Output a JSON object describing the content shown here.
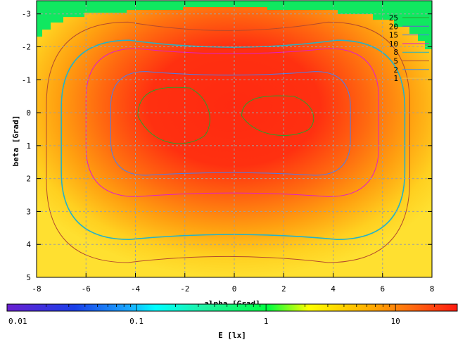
{
  "chart_data": {
    "type": "heatmap",
    "title": "",
    "xlabel": "alpha [Grad]",
    "ylabel": "beta [Grad]",
    "xlim": [
      -8,
      8
    ],
    "ylim": [
      -3.4,
      5
    ],
    "y_axis_inverted": true,
    "x_ticks": [
      "-8",
      "-6",
      "-4",
      "-2",
      "0",
      "2",
      "4",
      "6",
      "8"
    ],
    "x_tick_values": [
      -8,
      -6,
      -4,
      -2,
      0,
      2,
      4,
      6,
      8
    ],
    "y_ticks": [
      "-3",
      "-2",
      "-1",
      "0",
      "1",
      "2",
      "3",
      "4",
      "5"
    ],
    "y_tick_values": [
      -3,
      -2,
      -1,
      0,
      1,
      2,
      3,
      4,
      5
    ],
    "grid": true,
    "legend_position": "top-right",
    "contours": [
      {
        "name": "25",
        "level": 25,
        "color": "#2ca02c",
        "shape": "two-lobes"
      },
      {
        "name": "20",
        "level": 20,
        "color": "#6a5acd",
        "shape": "none-visible"
      },
      {
        "name": "15",
        "level": 15,
        "color": "#4a7ff0",
        "shape": "ring",
        "xmin": -5.0,
        "xmax": 4.7,
        "ymin": -1.25,
        "ymax": 1.9
      },
      {
        "name": "10",
        "level": 10,
        "color": "#e020c8",
        "shape": "ring",
        "xmin": -6.0,
        "xmax": 5.85,
        "ymin": -1.95,
        "ymax": 2.55
      },
      {
        "name": "8",
        "level": 8,
        "color": "#24b2c8",
        "shape": "ring",
        "xmin": -7.0,
        "xmax": 6.9,
        "ymin": -2.2,
        "ymax": 3.85
      },
      {
        "name": "5",
        "level": 5,
        "color": "#b44a2e",
        "shape": "ring",
        "xmin": -7.6,
        "xmax": 7.1,
        "ymin": -2.75,
        "ymax": 4.55
      },
      {
        "name": "2",
        "level": 2,
        "color": "#4a8fe0",
        "shape": "none-visible"
      },
      {
        "name": "1",
        "level": 1,
        "color": "#f0c040",
        "shape": "none-visible"
      }
    ],
    "colorbar": {
      "label": "E [lx]",
      "scale": "log",
      "range": [
        0.01,
        30
      ],
      "ticks": [
        "0.01",
        "0.1",
        "1",
        "10"
      ],
      "tick_values": [
        0.01,
        0.1,
        1,
        10
      ],
      "colors": [
        "#6a20d0",
        "#1a3fe8",
        "#1aa8ff",
        "#00ffff",
        "#20f0a0",
        "#00ff40",
        "#ffff00",
        "#ffb000",
        "#ff6a10",
        "#ff1a10"
      ]
    }
  }
}
